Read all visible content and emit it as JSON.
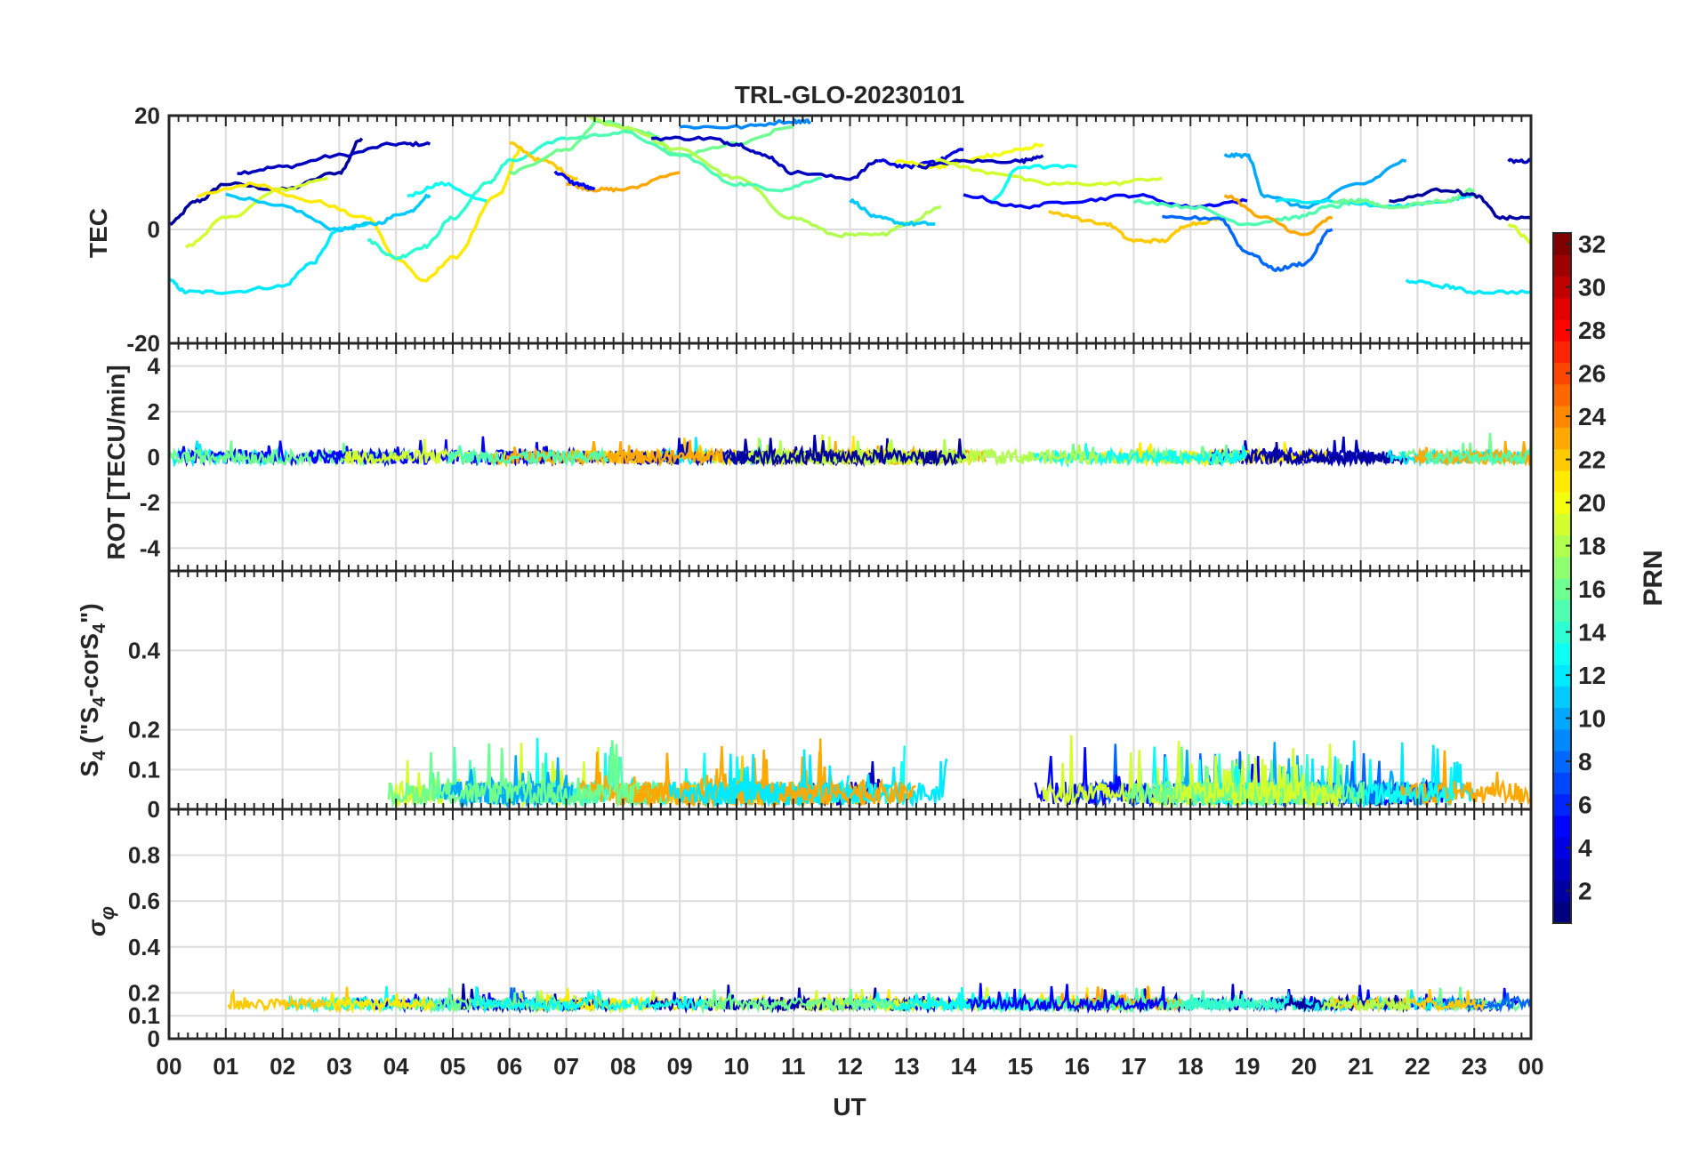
{
  "title": "TRL-GLO-20230101",
  "xlabel": "UT",
  "x_ticks": [
    "00",
    "01",
    "02",
    "03",
    "04",
    "05",
    "06",
    "07",
    "08",
    "09",
    "10",
    "11",
    "12",
    "13",
    "14",
    "15",
    "16",
    "17",
    "18",
    "19",
    "20",
    "21",
    "22",
    "23",
    "00"
  ],
  "colorbar": {
    "label": "PRN",
    "range": [
      1,
      32
    ],
    "ticks": [
      "2",
      "4",
      "6",
      "8",
      "10",
      "12",
      "14",
      "16",
      "18",
      "20",
      "22",
      "24",
      "26",
      "28",
      "30",
      "32"
    ]
  },
  "chart_data": [
    {
      "type": "line",
      "name": "tec",
      "ylabel": "TEC",
      "ylim": [
        -20,
        20
      ],
      "y_ticks": [
        "20",
        "0",
        "-20"
      ],
      "xlim_hours": [
        0,
        24
      ],
      "series": [
        {
          "prn": 2,
          "x": [
            0,
            0.5,
            1.0,
            2.0,
            3.0,
            3.4
          ],
          "values": [
            1,
            5,
            8,
            7,
            10,
            16
          ]
        },
        {
          "prn": 3,
          "x": [
            1.2,
            2.0,
            3.0,
            4.0,
            4.6
          ],
          "values": [
            10,
            11,
            13,
            15,
            15
          ]
        },
        {
          "prn": 19,
          "x": [
            0.3,
            1.0,
            2.0,
            2.8
          ],
          "values": [
            -3,
            2,
            7,
            9
          ]
        },
        {
          "prn": 21,
          "x": [
            0.5,
            1.5,
            2.5,
            3.5,
            4.0,
            4.5,
            5.0,
            5.8,
            6.2
          ],
          "values": [
            6,
            8,
            5,
            2,
            -5,
            -9,
            -5,
            6,
            14
          ]
        },
        {
          "prn": 12,
          "x": [
            0.0,
            0.3,
            1.0,
            2.0,
            2.5,
            3.0,
            3.5
          ],
          "values": [
            -9,
            -11,
            -11,
            -10,
            -6,
            0,
            1
          ]
        },
        {
          "prn": 11,
          "x": [
            1.0,
            2.0,
            3.0,
            3.6,
            4.2,
            4.6
          ],
          "values": [
            6,
            4,
            0,
            1,
            3,
            6
          ]
        },
        {
          "prn": 14,
          "x": [
            3.5,
            4.0,
            4.5,
            5.0,
            5.6,
            6.0,
            7.0
          ],
          "values": [
            -2,
            -5,
            -3,
            2,
            8,
            12,
            16
          ]
        },
        {
          "prn": 13,
          "x": [
            4.2,
            4.8,
            5.6
          ],
          "values": [
            6,
            8,
            5
          ]
        },
        {
          "prn": 22,
          "x": [
            6.0,
            6.6,
            7.2
          ],
          "values": [
            15,
            12,
            9
          ]
        },
        {
          "prn": 23,
          "x": [
            7.0,
            7.5,
            8.0,
            9.0
          ],
          "values": [
            8,
            7,
            7,
            10
          ]
        },
        {
          "prn": 5,
          "x": [
            6.8,
            7.2,
            7.5
          ],
          "values": [
            10,
            8,
            7
          ]
        },
        {
          "prn": 16,
          "x": [
            6.0,
            7.0,
            7.6,
            8.4,
            9.0,
            10.0,
            11.0
          ],
          "values": [
            10,
            14,
            19,
            17,
            13,
            15,
            18
          ]
        },
        {
          "prn": 18,
          "x": [
            7.2,
            8.0,
            9.0,
            10.0,
            11.0,
            11.8,
            12.5,
            13.0,
            13.6
          ],
          "values": [
            20,
            18,
            14,
            9,
            2,
            -1,
            -1,
            1,
            4
          ]
        },
        {
          "prn": 9,
          "x": [
            9.0,
            10.0,
            11.0,
            11.3
          ],
          "values": [
            18,
            18,
            19,
            19
          ]
        },
        {
          "prn": 3,
          "x": [
            8.5,
            9.5,
            10.0,
            10.5,
            11.0,
            12.0,
            12.5
          ],
          "values": [
            16,
            16,
            15,
            13,
            10,
            9,
            12
          ]
        },
        {
          "prn": 15,
          "x": [
            7.0,
            8.0,
            9.0,
            10.0,
            10.8,
            11.5
          ],
          "values": [
            16,
            17,
            13,
            8,
            7,
            9
          ]
        },
        {
          "prn": 11,
          "x": [
            12.0,
            12.5,
            13.0,
            13.5
          ],
          "values": [
            5,
            2,
            1,
            1
          ]
        },
        {
          "prn": 4,
          "x": [
            12.5,
            13.0,
            13.5,
            14.0
          ],
          "values": [
            12,
            11,
            12,
            14
          ]
        },
        {
          "prn": 20,
          "x": [
            12.8,
            13.5,
            14.0,
            14.5,
            15.0,
            15.4
          ],
          "values": [
            12,
            11,
            12,
            13,
            14,
            15
          ]
        },
        {
          "prn": 3,
          "x": [
            13.2,
            14.0,
            15.0,
            15.4
          ],
          "values": [
            11,
            12,
            12,
            13
          ]
        },
        {
          "prn": 19,
          "x": [
            13.5,
            14.5,
            15.5,
            16.5,
            17.5
          ],
          "values": [
            12,
            10,
            8,
            8,
            9
          ]
        },
        {
          "prn": 13,
          "x": [
            14.5,
            15.0,
            16.0
          ],
          "values": [
            5,
            11,
            11
          ]
        },
        {
          "prn": 5,
          "x": [
            14.0,
            15.0,
            16.0,
            17.0,
            18.0,
            19.0
          ],
          "values": [
            6,
            4,
            5,
            6,
            4,
            5
          ]
        },
        {
          "prn": 22,
          "x": [
            15.5,
            16.5,
            17.0,
            17.5,
            18.0,
            18.6
          ],
          "values": [
            3,
            1,
            -2,
            -2,
            1,
            2
          ]
        },
        {
          "prn": 15,
          "x": [
            17.0,
            18.0,
            19.0,
            19.8,
            20.5,
            21.0
          ],
          "values": [
            5,
            4,
            1,
            2,
            4,
            5
          ]
        },
        {
          "prn": 8,
          "x": [
            17.5,
            18.5,
            19.0,
            19.5,
            20.0,
            20.5
          ],
          "values": [
            2,
            2,
            -4,
            -7,
            -6,
            0
          ]
        },
        {
          "prn": 23,
          "x": [
            18.6,
            19.3,
            20.0,
            20.5
          ],
          "values": [
            6,
            2,
            -1,
            2
          ]
        },
        {
          "prn": 10,
          "x": [
            18.6,
            19.0,
            19.3,
            20.0,
            21.0,
            21.8
          ],
          "values": [
            13,
            13,
            6,
            4,
            8,
            12
          ]
        },
        {
          "prn": 12,
          "x": [
            19.5,
            20.5,
            21.5,
            22.5,
            23.0
          ],
          "values": [
            5,
            5,
            4,
            5,
            6
          ]
        },
        {
          "prn": 16,
          "x": [
            20.5,
            21.0,
            21.5,
            22.5,
            23.0
          ],
          "values": [
            5,
            5,
            4,
            5,
            7
          ]
        },
        {
          "prn": 2,
          "x": [
            21.5,
            22.5,
            23.0,
            23.5,
            24.0
          ],
          "values": [
            5,
            7,
            6,
            2,
            2
          ]
        },
        {
          "prn": 12,
          "x": [
            21.8,
            22.5,
            23.0,
            24.0
          ],
          "values": [
            -9,
            -10,
            -11,
            -11
          ]
        },
        {
          "prn": 3,
          "x": [
            23.6,
            24.0
          ],
          "values": [
            12,
            12
          ]
        },
        {
          "prn": 19,
          "x": [
            23.6,
            24.0
          ],
          "values": [
            1,
            -2
          ]
        }
      ]
    },
    {
      "type": "line",
      "name": "rot",
      "ylabel": "ROT [TECU/min]",
      "ylim": [
        -5,
        5
      ],
      "y_ticks": [
        "4",
        "2",
        "0",
        "-2",
        "-4"
      ],
      "xlim_hours": [
        0,
        24
      ],
      "series_description_values": {
        "typical_center": 0,
        "typical_spread": 0.3,
        "max_spike": 1.0,
        "min_spike": -1.4
      }
    },
    {
      "type": "line",
      "name": "s4",
      "ylabel": "S4 (\"S4-corS4\")",
      "ylabel_main": "S",
      "ylabel_sub": "4",
      "ylabel_paren_open": " (\"S",
      "ylabel_paren_mid": "-corS",
      "ylabel_paren_close": "\")",
      "ylim": [
        0,
        0.6
      ],
      "y_ticks": [
        "0.4",
        "0.2",
        "0.1",
        "0"
      ],
      "xlim_hours": [
        0,
        24
      ],
      "series_description_values": {
        "typical_level": 0.04,
        "typical_peak": 0.12,
        "max_spike": 0.21
      }
    },
    {
      "type": "line",
      "name": "sigma_phi",
      "ylabel": "σφ",
      "ylabel_main": "σ",
      "ylabel_sub": "φ",
      "ylim": [
        0,
        1
      ],
      "y_ticks": [
        "0.8",
        "0.6",
        "0.4",
        "0.2",
        "0.1",
        "0"
      ],
      "xlim_hours": [
        0,
        24
      ],
      "series_description_values": {
        "typical_level": 0.15,
        "typical_peak": 0.22,
        "max_spike": 0.28
      }
    }
  ]
}
